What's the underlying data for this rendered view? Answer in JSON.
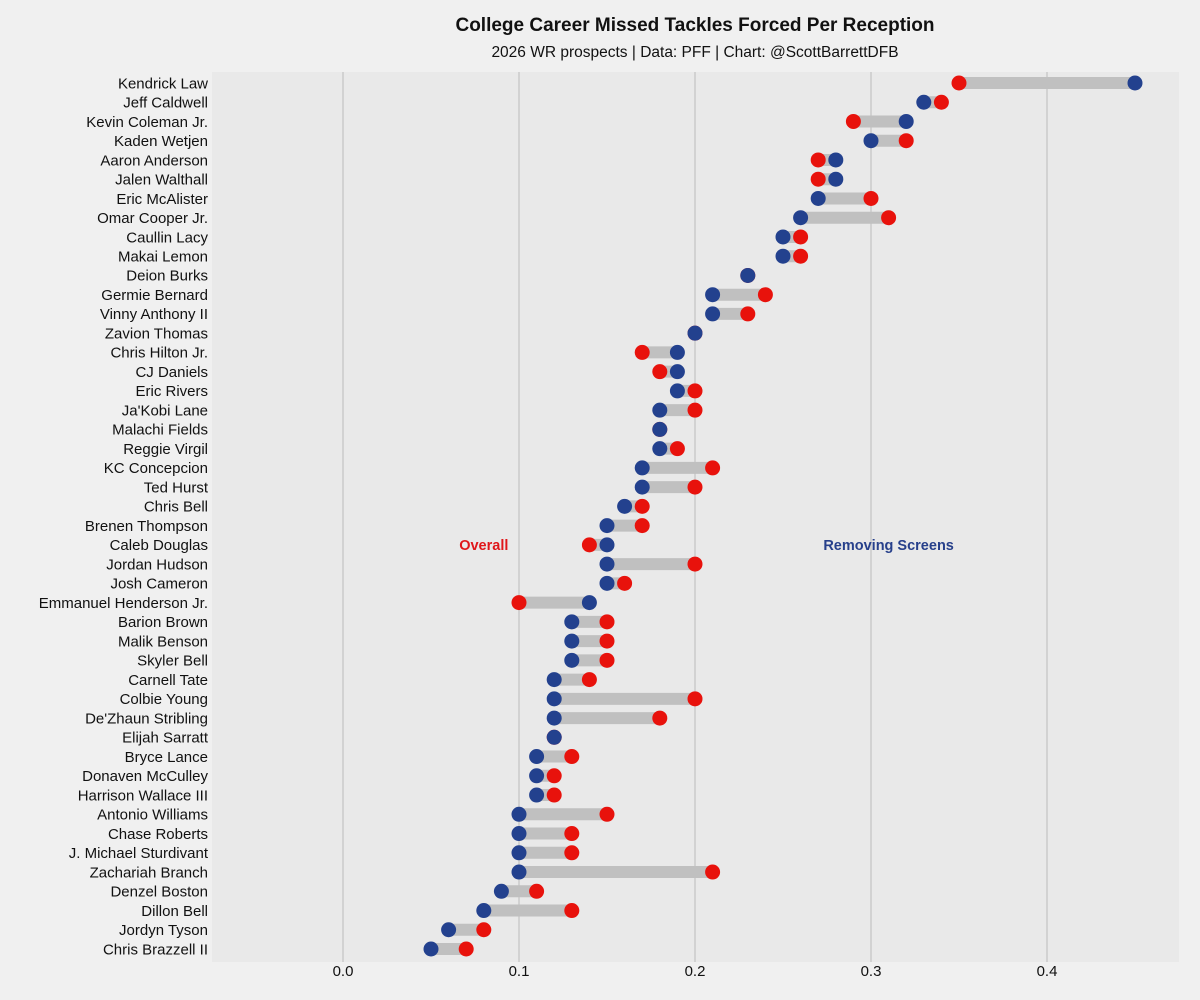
{
  "chart_data": {
    "type": "dumbbell",
    "title": "College Career Missed Tackles Forced Per Reception",
    "subtitle": "2026 WR prospects | Data: PFF | Chart: @ScottBarrettDFB",
    "xlabel": "",
    "ylabel": "",
    "xlim": [
      -0.1,
      0.475
    ],
    "xticks": [
      0.0,
      0.1,
      0.2,
      0.3,
      0.4
    ],
    "xtick_labels": [
      "0.0",
      "0.1",
      "0.2",
      "0.3",
      "0.4"
    ],
    "grid": "vertical",
    "annotations": [
      {
        "text": "Overall",
        "color": "#e0171b",
        "at_value": 0.08,
        "row": "Caleb Douglas"
      },
      {
        "text": "Removing Screens",
        "color": "#27408b",
        "at_value": 0.31,
        "row": "Caleb Douglas"
      }
    ],
    "series_colors": {
      "overall": "#e8120c",
      "removing_screens": "#23418e",
      "connector": "#c0c0c0"
    },
    "legend": [
      {
        "name": "Overall",
        "color": "#e8120c"
      },
      {
        "name": "Removing Screens",
        "color": "#23418e"
      }
    ],
    "players": [
      {
        "name": "Kendrick Law",
        "overall": 0.35,
        "removing_screens": 0.45
      },
      {
        "name": "Jeff Caldwell",
        "overall": 0.34,
        "removing_screens": 0.33
      },
      {
        "name": "Kevin Coleman Jr.",
        "overall": 0.29,
        "removing_screens": 0.32
      },
      {
        "name": "Kaden Wetjen",
        "overall": 0.32,
        "removing_screens": 0.3
      },
      {
        "name": "Aaron Anderson",
        "overall": 0.27,
        "removing_screens": 0.28
      },
      {
        "name": "Jalen Walthall",
        "overall": 0.27,
        "removing_screens": 0.28
      },
      {
        "name": "Eric McAlister",
        "overall": 0.3,
        "removing_screens": 0.27
      },
      {
        "name": "Omar Cooper Jr.",
        "overall": 0.31,
        "removing_screens": 0.26
      },
      {
        "name": "Caullin Lacy",
        "overall": 0.26,
        "removing_screens": 0.25
      },
      {
        "name": "Makai Lemon",
        "overall": 0.26,
        "removing_screens": 0.25
      },
      {
        "name": "Deion Burks",
        "overall": 0.23,
        "removing_screens": 0.23
      },
      {
        "name": "Germie Bernard",
        "overall": 0.24,
        "removing_screens": 0.21
      },
      {
        "name": "Vinny Anthony II",
        "overall": 0.23,
        "removing_screens": 0.21
      },
      {
        "name": "Zavion Thomas",
        "overall": 0.2,
        "removing_screens": 0.2
      },
      {
        "name": "Chris Hilton Jr.",
        "overall": 0.17,
        "removing_screens": 0.19
      },
      {
        "name": "CJ Daniels",
        "overall": 0.18,
        "removing_screens": 0.19
      },
      {
        "name": "Eric Rivers",
        "overall": 0.2,
        "removing_screens": 0.19
      },
      {
        "name": "Ja'Kobi Lane",
        "overall": 0.2,
        "removing_screens": 0.18
      },
      {
        "name": "Malachi Fields",
        "overall": 0.18,
        "removing_screens": 0.18
      },
      {
        "name": "Reggie Virgil",
        "overall": 0.19,
        "removing_screens": 0.18
      },
      {
        "name": "KC Concepcion",
        "overall": 0.21,
        "removing_screens": 0.17
      },
      {
        "name": "Ted Hurst",
        "overall": 0.2,
        "removing_screens": 0.17
      },
      {
        "name": "Chris Bell",
        "overall": 0.17,
        "removing_screens": 0.16
      },
      {
        "name": "Brenen Thompson",
        "overall": 0.17,
        "removing_screens": 0.15
      },
      {
        "name": "Caleb Douglas",
        "overall": 0.14,
        "removing_screens": 0.15
      },
      {
        "name": "Jordan Hudson",
        "overall": 0.2,
        "removing_screens": 0.15
      },
      {
        "name": "Josh Cameron",
        "overall": 0.16,
        "removing_screens": 0.15
      },
      {
        "name": "Emmanuel Henderson Jr.",
        "overall": 0.1,
        "removing_screens": 0.14
      },
      {
        "name": "Barion Brown",
        "overall": 0.15,
        "removing_screens": 0.13
      },
      {
        "name": "Malik Benson",
        "overall": 0.15,
        "removing_screens": 0.13
      },
      {
        "name": "Skyler Bell",
        "overall": 0.15,
        "removing_screens": 0.13
      },
      {
        "name": "Carnell Tate",
        "overall": 0.14,
        "removing_screens": 0.12
      },
      {
        "name": "Colbie Young",
        "overall": 0.2,
        "removing_screens": 0.12
      },
      {
        "name": "De'Zhaun Stribling",
        "overall": 0.18,
        "removing_screens": 0.12
      },
      {
        "name": "Elijah Sarratt",
        "overall": 0.12,
        "removing_screens": 0.12
      },
      {
        "name": "Bryce Lance",
        "overall": 0.13,
        "removing_screens": 0.11
      },
      {
        "name": "Donaven McCulley",
        "overall": 0.12,
        "removing_screens": 0.11
      },
      {
        "name": "Harrison Wallace III",
        "overall": 0.12,
        "removing_screens": 0.11
      },
      {
        "name": "Antonio Williams",
        "overall": 0.15,
        "removing_screens": 0.1
      },
      {
        "name": "Chase Roberts",
        "overall": 0.13,
        "removing_screens": 0.1
      },
      {
        "name": "J. Michael Sturdivant",
        "overall": 0.13,
        "removing_screens": 0.1
      },
      {
        "name": "Zachariah Branch",
        "overall": 0.21,
        "removing_screens": 0.1
      },
      {
        "name": "Denzel Boston",
        "overall": 0.11,
        "removing_screens": 0.09
      },
      {
        "name": "Dillon Bell",
        "overall": 0.13,
        "removing_screens": 0.08
      },
      {
        "name": "Jordyn Tyson",
        "overall": 0.08,
        "removing_screens": 0.06
      },
      {
        "name": "Chris Brazzell II",
        "overall": 0.07,
        "removing_screens": 0.05
      }
    ]
  }
}
